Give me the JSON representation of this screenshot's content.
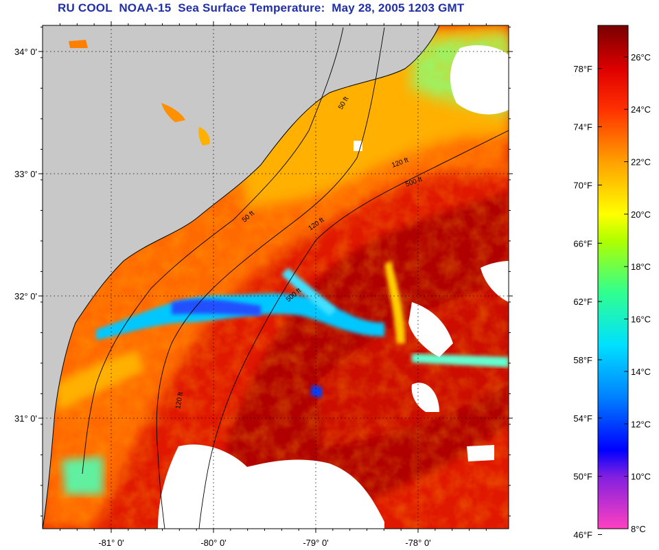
{
  "title": "RU COOL  NOAA-15  Sea Surface Temperature:  May 28, 2005 1203 GMT",
  "map": {
    "lat_labels": [
      {
        "lat": 34,
        "label": "34° 0'"
      },
      {
        "lat": 33,
        "label": "33° 0'"
      },
      {
        "lat": 32,
        "label": "32° 0'"
      },
      {
        "lat": 31,
        "label": "31° 0'"
      }
    ],
    "lon_labels": [
      {
        "lon": -81,
        "label": "-81° 0'"
      },
      {
        "lon": -80,
        "label": "-80° 0'"
      },
      {
        "lon": -79,
        "label": "-79° 0'"
      },
      {
        "lon": -78,
        "label": "-78° 0'"
      }
    ],
    "isobath_labels": [
      "50 ft",
      "120 ft",
      "500 ft"
    ],
    "colors": {
      "land": "#c8c8c8",
      "cloud": "#ffffff",
      "water_warm": "#c80000",
      "water_mid": "#ff5a00",
      "contour": "#000000"
    }
  },
  "colorbar": {
    "fahrenheit_labels": [
      "78°F",
      "74°F",
      "70°F",
      "66°F",
      "62°F",
      "58°F",
      "54°F",
      "50°F",
      "46°F"
    ],
    "celsius_labels": [
      "26°C",
      "24°C",
      "22°C",
      "20°C",
      "18°C",
      "16°C",
      "14°C",
      "12°C",
      "10°C",
      "8°C"
    ],
    "celsius_values": [
      26,
      24,
      22,
      20,
      18,
      16,
      14,
      12,
      10,
      8
    ],
    "fahrenheit_values": [
      78,
      74,
      70,
      66,
      62,
      58,
      54,
      50,
      46
    ],
    "range_c": [
      8,
      27.2
    ],
    "stops": [
      {
        "c": 8,
        "color": "#ff40c0"
      },
      {
        "c": 10,
        "color": "#8020e0"
      },
      {
        "c": 11,
        "color": "#0000ff"
      },
      {
        "c": 13,
        "color": "#0080ff"
      },
      {
        "c": 15,
        "color": "#00e0ff"
      },
      {
        "c": 17,
        "color": "#30ff90"
      },
      {
        "c": 19,
        "color": "#b0ff00"
      },
      {
        "c": 20,
        "color": "#ffff00"
      },
      {
        "c": 22,
        "color": "#ffa000"
      },
      {
        "c": 24,
        "color": "#ff3000"
      },
      {
        "c": 25.5,
        "color": "#e00000"
      },
      {
        "c": 27.2,
        "color": "#780000"
      }
    ]
  }
}
